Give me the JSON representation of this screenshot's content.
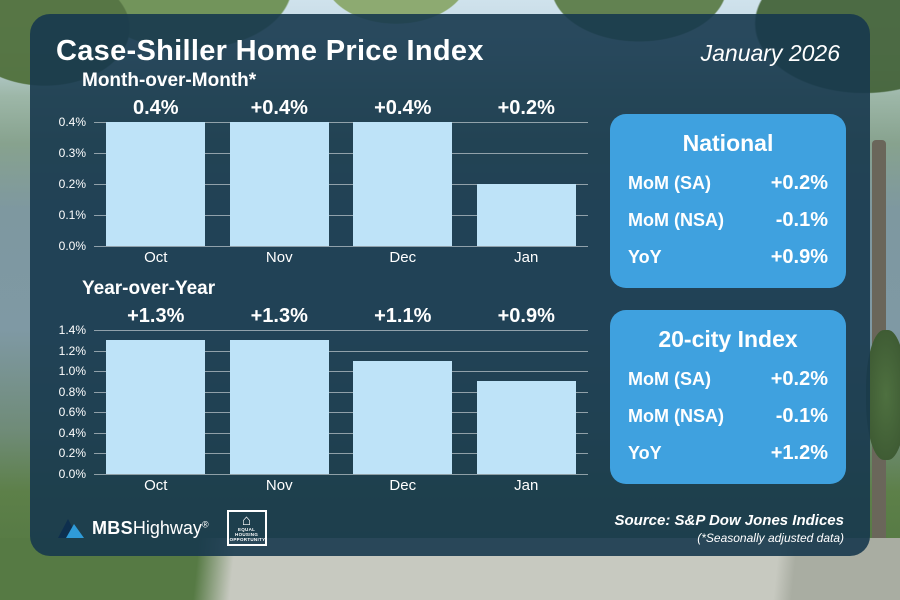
{
  "header": {
    "title": "Case-Shiller Home Price Index",
    "date": "January 2026"
  },
  "chart_data": [
    {
      "type": "bar",
      "title": "Month-over-Month*",
      "categories": [
        "Oct",
        "Nov",
        "Dec",
        "Jan"
      ],
      "values": [
        0.4,
        0.4,
        0.4,
        0.2
      ],
      "bar_labels": [
        "0.4%",
        "+0.4%",
        "+0.4%",
        "+0.2%"
      ],
      "xlabel": "",
      "ylabel": "",
      "ylim": [
        0,
        0.4
      ],
      "yticks": [
        "0.4%",
        "0.3%",
        "0.2%",
        "0.1%",
        "0.0%"
      ],
      "grid": true,
      "legend": false
    },
    {
      "type": "bar",
      "title": "Year-over-Year",
      "categories": [
        "Oct",
        "Nov",
        "Dec",
        "Jan"
      ],
      "values": [
        1.3,
        1.3,
        1.1,
        0.9
      ],
      "bar_labels": [
        "+1.3%",
        "+1.3%",
        "+1.1%",
        "+0.9%"
      ],
      "xlabel": "",
      "ylabel": "",
      "ylim": [
        0,
        1.4
      ],
      "yticks": [
        "1.4%",
        "1.2%",
        "1.0%",
        "0.8%",
        "0.6%",
        "0.4%",
        "0.2%",
        "0.0%"
      ],
      "grid": true,
      "legend": false
    }
  ],
  "panels": [
    {
      "title": "National",
      "rows": [
        {
          "label": "MoM (SA)",
          "value": "+0.2%"
        },
        {
          "label": "MoM (NSA)",
          "value": "-0.1%"
        },
        {
          "label": "YoY",
          "value": "+0.9%"
        }
      ]
    },
    {
      "title": "20-city Index",
      "rows": [
        {
          "label": "MoM (SA)",
          "value": "+0.2%"
        },
        {
          "label": "MoM (NSA)",
          "value": "-0.1%"
        },
        {
          "label": "YoY",
          "value": "+1.2%"
        }
      ]
    }
  ],
  "footer": {
    "brand": "MBS",
    "brand2": "Highway",
    "registered": "®",
    "equal_housing": "EQUAL HOUSING OPPORTUNITY",
    "source_line1": "Source: S&P Dow Jones Indices",
    "source_line2": "(*Seasonally adjusted data)"
  },
  "colors": {
    "overlay": "#17384E",
    "panel": "#3FA1DF",
    "bar": "#BEE3F8"
  }
}
